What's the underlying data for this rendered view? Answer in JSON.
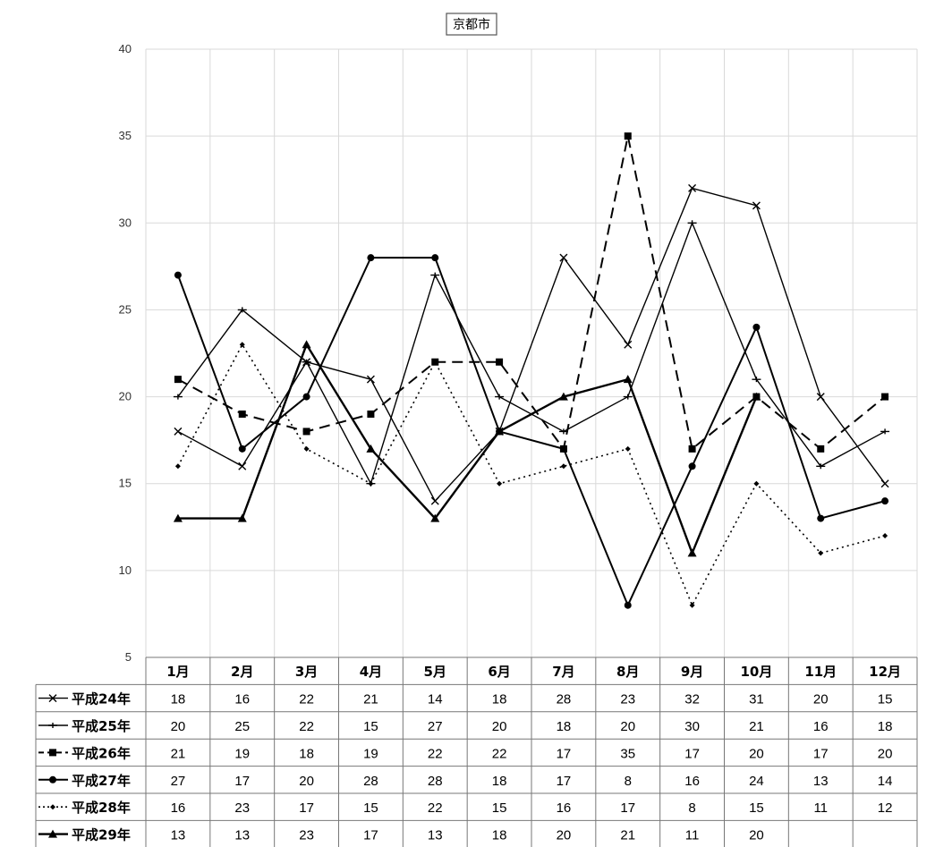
{
  "chart_data": {
    "type": "line",
    "title": "京都市",
    "xlabel": "",
    "ylabel": "",
    "ylim": [
      5,
      40
    ],
    "yticks": [
      "5",
      "10",
      "15",
      "20",
      "25",
      "30",
      "35",
      "40"
    ],
    "grid": true,
    "legend_placement": "data-table-left",
    "categories": [
      "1月",
      "2月",
      "3月",
      "4月",
      "5月",
      "6月",
      "7月",
      "8月",
      "9月",
      "10月",
      "11月",
      "12月"
    ],
    "series": [
      {
        "name": "平成24年",
        "values": [
          18,
          16,
          22,
          21,
          14,
          18,
          28,
          23,
          32,
          31,
          20,
          15
        ]
      },
      {
        "name": "平成25年",
        "values": [
          20,
          25,
          22,
          15,
          27,
          20,
          18,
          20,
          30,
          21,
          16,
          18
        ]
      },
      {
        "name": "平成26年",
        "values": [
          21,
          19,
          18,
          19,
          22,
          22,
          17,
          35,
          17,
          20,
          17,
          20
        ]
      },
      {
        "name": "平成27年",
        "values": [
          27,
          17,
          20,
          28,
          28,
          18,
          17,
          8,
          16,
          24,
          13,
          14
        ]
      },
      {
        "name": "平成28年",
        "values": [
          16,
          23,
          17,
          15,
          22,
          15,
          16,
          17,
          8,
          15,
          11,
          12
        ]
      },
      {
        "name": "平成29年",
        "values": [
          13,
          13,
          23,
          17,
          13,
          18,
          20,
          21,
          11,
          20,
          null,
          null
        ]
      }
    ]
  }
}
